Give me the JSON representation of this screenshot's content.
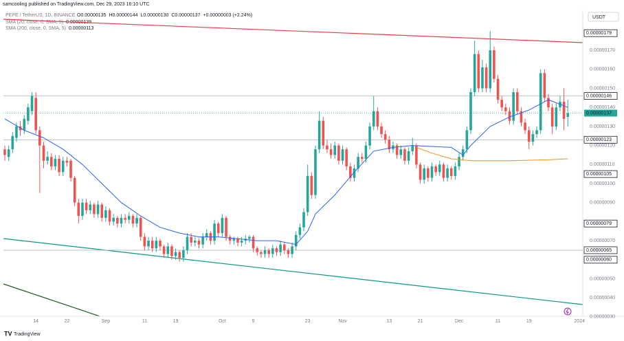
{
  "header": {
    "author_line": "samcooling published on TradingView.com, Dec 29, 2023 16:10 UTC",
    "currency": "USDT",
    "brand": "TradingView"
  },
  "chart_data": {
    "type": "candlestick",
    "symbol": "PEPE / TetherUS, 1D, BINANCE",
    "ohlc_text": [
      "O0.00000135",
      "H0.00000144",
      "L0.00000130",
      "C0.00000137",
      "+0.00000003 (+2.24%)"
    ],
    "up_color": "#26a69a",
    "down_color": "#ef5350",
    "grid": false,
    "xlim": [
      -0.35,
      148.85
    ],
    "xticks": [
      {
        "value": 8,
        "label": "14"
      },
      {
        "value": 16,
        "label": "22"
      },
      {
        "value": 26,
        "label": "Sep"
      },
      {
        "value": 36,
        "label": "11"
      },
      {
        "value": 44,
        "label": "19"
      },
      {
        "value": 56,
        "label": "Oct"
      },
      {
        "value": 64,
        "label": "9"
      },
      {
        "value": 78,
        "label": "23"
      },
      {
        "value": 87,
        "label": "Nov"
      },
      {
        "value": 99,
        "label": "13"
      },
      {
        "value": 107,
        "label": "21"
      },
      {
        "value": 117,
        "label": "Dec"
      },
      {
        "value": 127,
        "label": "11"
      },
      {
        "value": 135,
        "label": "19"
      },
      {
        "value": 148,
        "label": "2024"
      }
    ],
    "ylim": [
      2.96e-07,
      1.899e-06
    ],
    "yticks": [
      {
        "value": 1.7e-06,
        "label": "0.00000170"
      },
      {
        "value": 1.6e-06,
        "label": "0.00000160"
      },
      {
        "value": 1.5e-06,
        "label": "0.00000150"
      },
      {
        "value": 1.4e-06,
        "label": "0.00000140"
      },
      {
        "value": 1.3e-06,
        "label": "0.00000130"
      },
      {
        "value": 1.2e-06,
        "label": "0.00000120"
      },
      {
        "value": 1.1e-06,
        "label": "0.00000110"
      },
      {
        "value": 1e-06,
        "label": "0.00000100"
      },
      {
        "value": 9e-07,
        "label": "0.00000090"
      },
      {
        "value": 7e-07,
        "label": "0.00000070"
      },
      {
        "value": 5e-07,
        "label": "0.00000050"
      },
      {
        "value": 4e-07,
        "label": "0.00000040"
      },
      {
        "value": 3e-07,
        "label": "0.00000030"
      }
    ],
    "price_levels": [
      {
        "value": 1.79e-06,
        "label": "0.00000179",
        "line": false
      },
      {
        "value": 1.46e-06,
        "label": "0.00000146",
        "line": true
      },
      {
        "value": 1.23e-06,
        "label": "0.00000123",
        "line": true
      },
      {
        "value": 1.05e-06,
        "label": "0.00000105",
        "line": false
      },
      {
        "value": 7.9e-07,
        "label": "0.00000079",
        "line": false
      },
      {
        "value": 6.5e-07,
        "label": "0.00000065",
        "line": true
      },
      {
        "value": 6e-07,
        "label": "0.00000060",
        "line": false
      }
    ],
    "last_price": {
      "value": 1.37e-06,
      "label": "0.00000137"
    },
    "candles": [
      [
        1.18e-06,
        1.2e-06,
        1.12e-06,
        1.15e-06
      ],
      [
        1.14e-06,
        1.2e-06,
        1.12e-06,
        1.18e-06
      ],
      [
        1.18e-06,
        1.27e-06,
        1.16e-06,
        1.25e-06
      ],
      [
        1.24e-06,
        1.32e-06,
        1.22e-06,
        1.3e-06
      ],
      [
        1.3e-06,
        1.33e-06,
        1.25e-06,
        1.28e-06
      ],
      [
        1.28e-06,
        1.36e-06,
        1.26e-06,
        1.34e-06
      ],
      [
        1.33e-06,
        1.42e-06,
        1.31e-06,
        1.4e-06
      ],
      [
        1.38e-06,
        1.48e-06,
        1.36e-06,
        1.46e-06
      ],
      [
        1.45e-06,
        1.48e-06,
        1.26e-06,
        1.28e-06
      ],
      [
        1.28e-06,
        1.3e-06,
        9.5e-07,
        1.2e-06
      ],
      [
        1.2e-06,
        1.22e-06,
        1.08e-06,
        1.12e-06
      ],
      [
        1.12e-06,
        1.17e-06,
        1.1e-06,
        1.14e-06
      ],
      [
        1.14e-06,
        1.16e-06,
        1.07e-06,
        1.09e-06
      ],
      [
        1.09e-06,
        1.15e-06,
        1.07e-06,
        1.13e-06
      ],
      [
        1.13e-06,
        1.15e-06,
        1.04e-06,
        1.06e-06
      ],
      [
        1.06e-06,
        1.14e-06,
        1.04e-06,
        1.12e-06
      ],
      [
        1.12e-06,
        1.14e-06,
        1.09e-06,
        1.11e-06
      ],
      [
        1.12e-06,
        1.13e-06,
        1.01e-06,
        1.03e-06
      ],
      [
        1.03e-06,
        1.04e-06,
        8.8e-07,
        9e-07
      ],
      [
        9e-07,
        9.2e-07,
        7.9e-07,
        8.3e-07
      ],
      [
        8.3e-07,
        9.2e-07,
        8.1e-07,
        9e-07
      ],
      [
        9e-07,
        9.2e-07,
        8.4e-07,
        8.6e-07
      ],
      [
        8.6e-07,
        9.1e-07,
        8.4e-07,
        8.9e-07
      ],
      [
        8.9e-07,
        9e-07,
        8.2e-07,
        8.4e-07
      ],
      [
        8.4e-07,
        9.1e-07,
        8.2e-07,
        8.9e-07
      ],
      [
        8.9e-07,
        9e-07,
        8e-07,
        8.2e-07
      ],
      [
        8.2e-07,
        8.8e-07,
        8e-07,
        8.6e-07
      ],
      [
        8.6e-07,
        8.7e-07,
        7.8e-07,
        8e-07
      ],
      [
        8e-07,
        8.4e-07,
        7.8e-07,
        8.2e-07
      ],
      [
        8.2e-07,
        8.3e-07,
        7.7e-07,
        7.9e-07
      ],
      [
        7.9e-07,
        8.4e-07,
        7.7e-07,
        8.2e-07
      ],
      [
        8.2e-07,
        8.4e-07,
        7.9e-07,
        8.1e-07
      ],
      [
        8.1e-07,
        8.5e-07,
        7.9e-07,
        8.3e-07
      ],
      [
        8.3e-07,
        8.4e-07,
        7.7e-07,
        7.9e-07
      ],
      [
        7.9e-07,
        8.4e-07,
        7.7e-07,
        8.2e-07
      ],
      [
        8.2e-07,
        8.3e-07,
        7e-07,
        7.2e-07
      ],
      [
        7.2e-07,
        7.4e-07,
        6.5e-07,
        6.7e-07
      ],
      [
        6.7e-07,
        7.2e-07,
        6.5e-07,
        7e-07
      ],
      [
        7e-07,
        7.2e-07,
        6.4e-07,
        6.6e-07
      ],
      [
        6.6e-07,
        7.2e-07,
        6.4e-07,
        7e-07
      ],
      [
        7e-07,
        7.1e-07,
        6.5e-07,
        6.7e-07
      ],
      [
        6.7e-07,
        6.8e-07,
        6.1e-07,
        6.3e-07
      ],
      [
        6.3e-07,
        6.9e-07,
        6.1e-07,
        6.7e-07
      ],
      [
        6.7e-07,
        6.8e-07,
        6e-07,
        6.2e-07
      ],
      [
        6.2e-07,
        6.6e-07,
        6e-07,
        6.4e-07
      ],
      [
        6.4e-07,
        6.5e-07,
        5.9e-07,
        6.1e-07
      ],
      [
        6.1e-07,
        6.7e-07,
        5.9e-07,
        6.5e-07
      ],
      [
        6.5e-07,
        7.4e-07,
        6.3e-07,
        7.2e-07
      ],
      [
        7.2e-07,
        7.4e-07,
        6.7e-07,
        6.9e-07
      ],
      [
        6.9e-07,
        7.2e-07,
        6.7e-07,
        7e-07
      ],
      [
        7e-07,
        7.1e-07,
        6.6e-07,
        6.8e-07
      ],
      [
        6.8e-07,
        7.4e-07,
        6.6e-07,
        7.2e-07
      ],
      [
        7.2e-07,
        7.6e-07,
        7e-07,
        7.4e-07
      ],
      [
        7.4e-07,
        7.5e-07,
        6.8e-07,
        7e-07
      ],
      [
        7e-07,
        8.1e-07,
        6.8e-07,
        7.9e-07
      ],
      [
        7.9e-07,
        8e-07,
        7.2e-07,
        7.4e-07
      ],
      [
        7.4e-07,
        8.4e-07,
        7.2e-07,
        8.2e-07
      ],
      [
        8.2e-07,
        8.3e-07,
        7e-07,
        7.2e-07
      ],
      [
        7.2e-07,
        7.3e-07,
        6.8e-07,
        7e-07
      ],
      [
        7e-07,
        7.2e-07,
        6.8e-07,
        7.1e-07
      ],
      [
        7.1e-07,
        7.2e-07,
        6.7e-07,
        6.9e-07
      ],
      [
        6.9e-07,
        7.2e-07,
        6.7e-07,
        7e-07
      ],
      [
        7e-07,
        7.3e-07,
        6.8e-07,
        7.1e-07
      ],
      [
        7.1e-07,
        7.3e-07,
        6.9e-07,
        7.2e-07
      ],
      [
        7.2e-07,
        7.3e-07,
        6.4e-07,
        6.6e-07
      ],
      [
        6.6e-07,
        6.7e-07,
        6.2e-07,
        6.4e-07
      ],
      [
        6.4e-07,
        6.5e-07,
        6.1e-07,
        6.3e-07
      ],
      [
        6.3e-07,
        6.7e-07,
        6.1e-07,
        6.5e-07
      ],
      [
        6.5e-07,
        6.6e-07,
        6.1e-07,
        6.3e-07
      ],
      [
        6.3e-07,
        6.8e-07,
        6.1e-07,
        6.6e-07
      ],
      [
        6.6e-07,
        6.7e-07,
        6.2e-07,
        6.4e-07
      ],
      [
        6.4e-07,
        7e-07,
        6.2e-07,
        6.8e-07
      ],
      [
        6.8e-07,
        6.9e-07,
        6.3e-07,
        6.5e-07
      ],
      [
        6.5e-07,
        6.6e-07,
        6.1e-07,
        6.3e-07
      ],
      [
        6.3e-07,
        6.9e-07,
        6.1e-07,
        6.7e-07
      ],
      [
        6.7e-07,
        7.5e-07,
        6.5e-07,
        7.3e-07
      ],
      [
        7.3e-07,
        7.9e-07,
        7.1e-07,
        7.7e-07
      ],
      [
        7.7e-07,
        8.7e-07,
        7.5e-07,
        8.5e-07
      ],
      [
        8.5e-07,
        1.1e-06,
        8.3e-07,
        1.04e-06
      ],
      [
        1.04e-06,
        1.06e-06,
        9.2e-07,
        9.4e-07
      ],
      [
        9.4e-07,
        1.2e-06,
        9.2e-07,
        1.18e-06
      ],
      [
        1.18e-06,
        1.38e-06,
        1.16e-06,
        1.33e-06
      ],
      [
        1.33e-06,
        1.35e-06,
        1.18e-06,
        1.2e-06
      ],
      [
        1.2e-06,
        1.23e-06,
        1.16e-06,
        1.18e-06
      ],
      [
        1.18e-06,
        1.21e-06,
        1.13e-06,
        1.15e-06
      ],
      [
        1.15e-06,
        1.22e-06,
        1.13e-06,
        1.2e-06
      ],
      [
        1.2e-06,
        1.21e-06,
        1.1e-06,
        1.12e-06
      ],
      [
        1.12e-06,
        1.2e-06,
        1.1e-06,
        1.18e-06
      ],
      [
        1.18e-06,
        1.19e-06,
        1.07e-06,
        1.09e-06
      ],
      [
        1.09e-06,
        1.11e-06,
        1.01e-06,
        1.03e-06
      ],
      [
        1.03e-06,
        1.1e-06,
        1.01e-06,
        1.08e-06
      ],
      [
        1.08e-06,
        1.16e-06,
        1.06e-06,
        1.14e-06
      ],
      [
        1.14e-06,
        1.16e-06,
        1.11e-06,
        1.13e-06
      ],
      [
        1.13e-06,
        1.22e-06,
        1.11e-06,
        1.2e-06
      ],
      [
        1.2e-06,
        1.32e-06,
        1.18e-06,
        1.3e-06
      ],
      [
        1.3e-06,
        1.46e-06,
        1.28e-06,
        1.38e-06
      ],
      [
        1.38e-06,
        1.4e-06,
        1.28e-06,
        1.3e-06
      ],
      [
        1.3e-06,
        1.32e-06,
        1.24e-06,
        1.26e-06
      ],
      [
        1.26e-06,
        1.28e-06,
        1.21e-06,
        1.23e-06
      ],
      [
        1.23e-06,
        1.25e-06,
        1.16e-06,
        1.18e-06
      ],
      [
        1.18e-06,
        1.22e-06,
        1.16e-06,
        1.2e-06
      ],
      [
        1.2e-06,
        1.21e-06,
        1.13e-06,
        1.15e-06
      ],
      [
        1.15e-06,
        1.2e-06,
        1.13e-06,
        1.18e-06
      ],
      [
        1.18e-06,
        1.19e-06,
        1.1e-06,
        1.12e-06
      ],
      [
        1.12e-06,
        1.19e-06,
        1.1e-06,
        1.17e-06
      ],
      [
        1.17e-06,
        1.24e-06,
        1.15e-06,
        1.2e-06
      ],
      [
        1.2e-06,
        1.21e-06,
        1.08e-06,
        1.1e-06
      ],
      [
        1.1e-06,
        1.11e-06,
        1e-06,
        1.02e-06
      ],
      [
        1.02e-06,
        1.1e-06,
        1e-06,
        1.08e-06
      ],
      [
        1.08e-06,
        1.09e-06,
        1.01e-06,
        1.03e-06
      ],
      [
        1.03e-06,
        1.11e-06,
        1.01e-06,
        1.09e-06
      ],
      [
        1.09e-06,
        1.1e-06,
        1.04e-06,
        1.06e-06
      ],
      [
        1.06e-06,
        1.12e-06,
        1.04e-06,
        1.1e-06
      ],
      [
        1.1e-06,
        1.11e-06,
        1.01e-06,
        1.03e-06
      ],
      [
        1.03e-06,
        1.1e-06,
        1.01e-06,
        1.08e-06
      ],
      [
        1.08e-06,
        1.09e-06,
        1.02e-06,
        1.04e-06
      ],
      [
        1.04e-06,
        1.11e-06,
        1.02e-06,
        1.09e-06
      ],
      [
        1.09e-06,
        1.16e-06,
        1.07e-06,
        1.14e-06
      ],
      [
        1.14e-06,
        1.2e-06,
        1.12e-06,
        1.18e-06
      ],
      [
        1.18e-06,
        1.3e-06,
        1.16e-06,
        1.28e-06
      ],
      [
        1.28e-06,
        1.5e-06,
        1.26e-06,
        1.48e-06
      ],
      [
        1.48e-06,
        1.75e-06,
        1.46e-06,
        1.68e-06
      ],
      [
        1.68e-06,
        1.7e-06,
        1.48e-06,
        1.5e-06
      ],
      [
        1.5e-06,
        1.65e-06,
        1.48e-06,
        1.61e-06
      ],
      [
        1.61e-06,
        1.63e-06,
        1.48e-06,
        1.5e-06
      ],
      [
        1.5e-06,
        1.8e-06,
        1.48e-06,
        1.7e-06
      ],
      [
        1.7e-06,
        1.72e-06,
        1.53e-06,
        1.55e-06
      ],
      [
        1.55e-06,
        1.57e-06,
        1.42e-06,
        1.44e-06
      ],
      [
        1.44e-06,
        1.46e-06,
        1.38e-06,
        1.4e-06
      ],
      [
        1.4e-06,
        1.42e-06,
        1.36e-06,
        1.38e-06
      ],
      [
        1.38e-06,
        1.4e-06,
        1.31e-06,
        1.33e-06
      ],
      [
        1.33e-06,
        1.5e-06,
        1.31e-06,
        1.48e-06
      ],
      [
        1.48e-06,
        1.5e-06,
        1.36e-06,
        1.38e-06
      ],
      [
        1.38e-06,
        1.4e-06,
        1.3e-06,
        1.32e-06
      ],
      [
        1.32e-06,
        1.34e-06,
        1.26e-06,
        1.28e-06
      ],
      [
        1.28e-06,
        1.3e-06,
        1.18e-06,
        1.22e-06
      ],
      [
        1.22e-06,
        1.28e-06,
        1.2e-06,
        1.26e-06
      ],
      [
        1.26e-06,
        1.3e-06,
        1.24e-06,
        1.28e-06
      ],
      [
        1.28e-06,
        1.6e-06,
        1.26e-06,
        1.58e-06
      ],
      [
        1.58e-06,
        1.6e-06,
        1.43e-06,
        1.45e-06
      ],
      [
        1.45e-06,
        1.47e-06,
        1.38e-06,
        1.4e-06
      ],
      [
        1.4e-06,
        1.42e-06,
        1.26e-06,
        1.3e-06
      ],
      [
        1.3e-06,
        1.42e-06,
        1.28e-06,
        1.4e-06
      ],
      [
        1.4e-06,
        1.46e-06,
        1.38e-06,
        1.43e-06
      ],
      [
        1.43e-06,
        1.5e-06,
        1.28e-06,
        1.34e-06
      ],
      [
        1.35e-06,
        1.44e-06,
        1.3e-06,
        1.37e-06
      ]
    ],
    "series": [
      {
        "name": "SMA (20, close, 0, SMA, 5)",
        "legend_value": "0.00000139",
        "color": "#2962ff",
        "x": [
          0,
          5,
          10,
          15,
          20,
          25,
          30,
          35,
          40,
          45,
          50,
          55,
          60,
          65,
          70,
          75,
          78,
          80,
          85,
          90,
          95,
          100,
          105,
          110,
          115,
          118,
          120,
          125,
          130,
          135,
          140,
          145
        ],
        "values": [
          1.34e-06,
          1.28e-06,
          1.24e-06,
          1.18e-06,
          1.1e-06,
          1e-06,
          9e-07,
          8.3e-07,
          7.7e-07,
          7.4e-07,
          7.2e-07,
          7.2e-07,
          7.1e-07,
          7e-07,
          7e-07,
          6.8e-07,
          7.5e-07,
          8.4e-07,
          9.4e-07,
          1.06e-06,
          1.17e-06,
          1.19e-06,
          1.2e-06,
          1.195e-06,
          1.19e-06,
          1.15e-06,
          1.2e-06,
          1.3e-06,
          1.35e-06,
          1.386e-06,
          1.44e-06,
          1.4e-06
        ]
      },
      {
        "name": "SMA (200, close, 0, SMA, 5)",
        "legend_value": "0.00000113",
        "color": "#f7931a",
        "x": [
          106,
          110,
          115,
          120,
          130,
          140,
          145
        ],
        "values": [
          1.19e-06,
          1.16e-06,
          1.13e-06,
          1.12e-06,
          1.12e-06,
          1.125e-06,
          1.13e-06
        ]
      }
    ]
  }
}
